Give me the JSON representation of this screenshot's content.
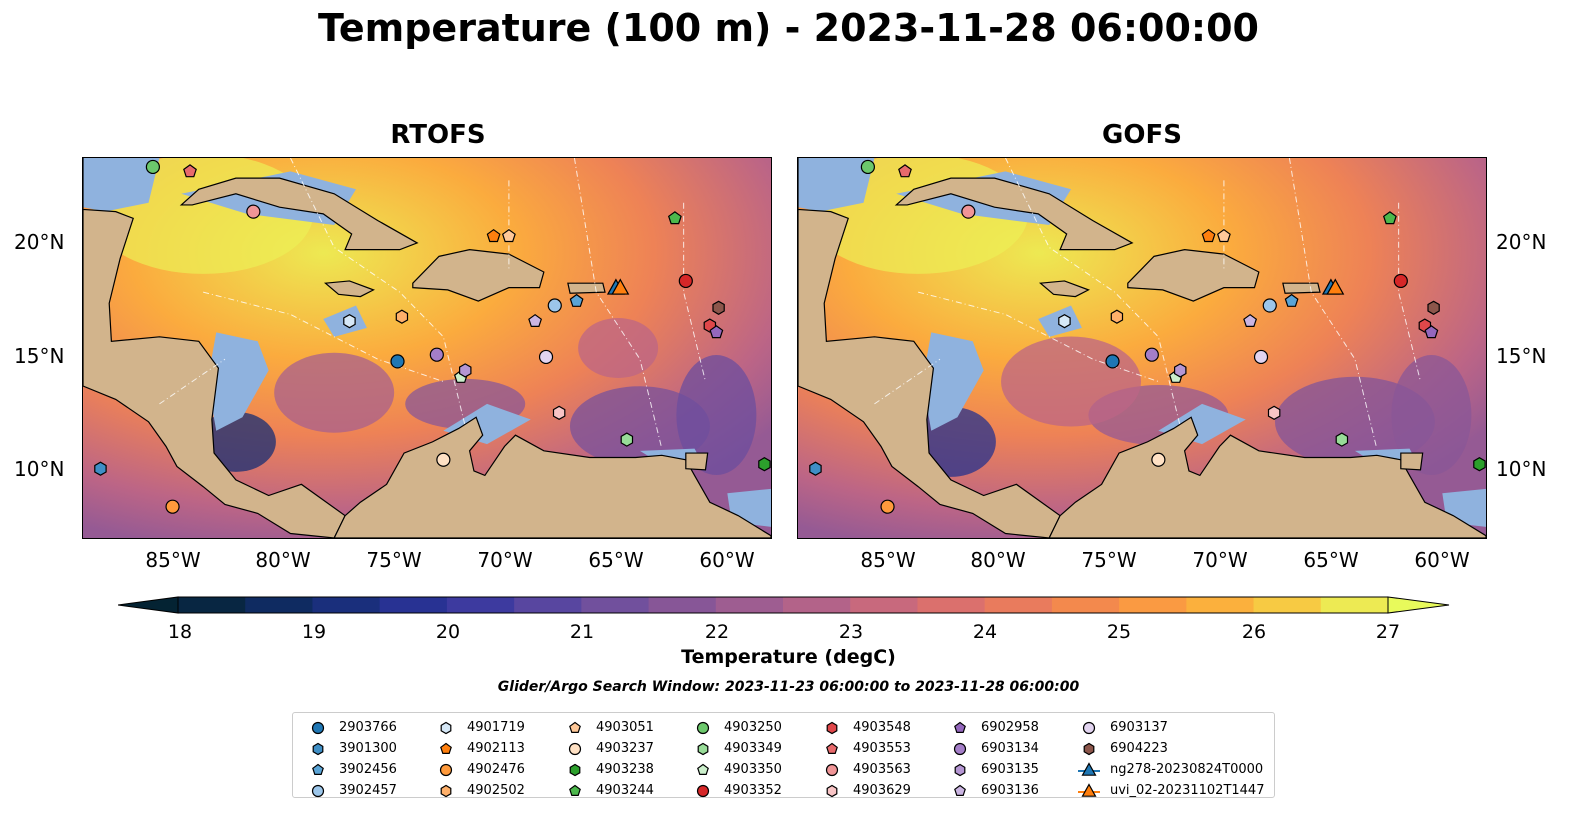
{
  "title": "Temperature (100 m) - 2023-11-28 06:00:00",
  "panels": [
    {
      "title": "RTOFS"
    },
    {
      "title": "GOFS"
    }
  ],
  "lat_labels": [
    "20°N",
    "15°N",
    "10°N"
  ],
  "lon_labels": [
    "85°W",
    "80°W",
    "75°W",
    "70°W",
    "65°W",
    "60°W"
  ],
  "colorbar": {
    "label": "Temperature (degC)",
    "ticks": [
      "18",
      "19",
      "20",
      "21",
      "22",
      "23",
      "24",
      "25",
      "26",
      "27"
    ],
    "min": 18,
    "max": 27,
    "step": 0.5,
    "colormap": "thermal"
  },
  "search_window": "Glider/Argo Search Window: 2023-11-23 06:00:00 to 2023-11-28 06:00:00",
  "legend": [
    {
      "label": "2903766",
      "marker": "circle",
      "color": "#1f77b4"
    },
    {
      "label": "3901300",
      "marker": "hexagon",
      "color": "#3f8fc6"
    },
    {
      "label": "3902456",
      "marker": "pentagon",
      "color": "#5aa4d6"
    },
    {
      "label": "3902457",
      "marker": "circle",
      "color": "#9cc6ea"
    },
    {
      "label": "4901719",
      "marker": "hexagon",
      "color": "#d6e8f7"
    },
    {
      "label": "4902113",
      "marker": "pentagon",
      "color": "#ff7f0e"
    },
    {
      "label": "4902476",
      "marker": "circle",
      "color": "#ff9a3c"
    },
    {
      "label": "4902502",
      "marker": "hexagon",
      "color": "#ffb06a"
    },
    {
      "label": "4903051",
      "marker": "pentagon",
      "color": "#ffc898"
    },
    {
      "label": "4903237",
      "marker": "circle",
      "color": "#ffe1c4"
    },
    {
      "label": "4903238",
      "marker": "hexagon",
      "color": "#2ca02c"
    },
    {
      "label": "4903244",
      "marker": "pentagon",
      "color": "#4cb84c"
    },
    {
      "label": "4903250",
      "marker": "circle",
      "color": "#6cc86c"
    },
    {
      "label": "4903349",
      "marker": "hexagon",
      "color": "#98dc98"
    },
    {
      "label": "4903350",
      "marker": "pentagon",
      "color": "#cbefcb"
    },
    {
      "label": "4903352",
      "marker": "circle",
      "color": "#d62728"
    },
    {
      "label": "4903548",
      "marker": "hexagon",
      "color": "#e0474a"
    },
    {
      "label": "4903553",
      "marker": "pentagon",
      "color": "#e86a6c"
    },
    {
      "label": "4903563",
      "marker": "circle",
      "color": "#f09597"
    },
    {
      "label": "4903629",
      "marker": "hexagon",
      "color": "#f8c4c5"
    },
    {
      "label": "6902958",
      "marker": "pentagon",
      "color": "#9467bd"
    },
    {
      "label": "6903134",
      "marker": "circle",
      "color": "#a47ec8"
    },
    {
      "label": "6903135",
      "marker": "hexagon",
      "color": "#b596d3"
    },
    {
      "label": "6903136",
      "marker": "pentagon",
      "color": "#cbb5e2"
    },
    {
      "label": "6903137",
      "marker": "circle",
      "color": "#e2d4f0"
    },
    {
      "label": "6904223",
      "marker": "hexagon",
      "color": "#8c564b"
    },
    {
      "label": "ng278-20230824T0000",
      "marker": "triangle",
      "color": "#1f77b4"
    },
    {
      "label": "uvi_02-20231102T1447",
      "marker": "triangle",
      "color": "#ff7f0e"
    }
  ]
}
